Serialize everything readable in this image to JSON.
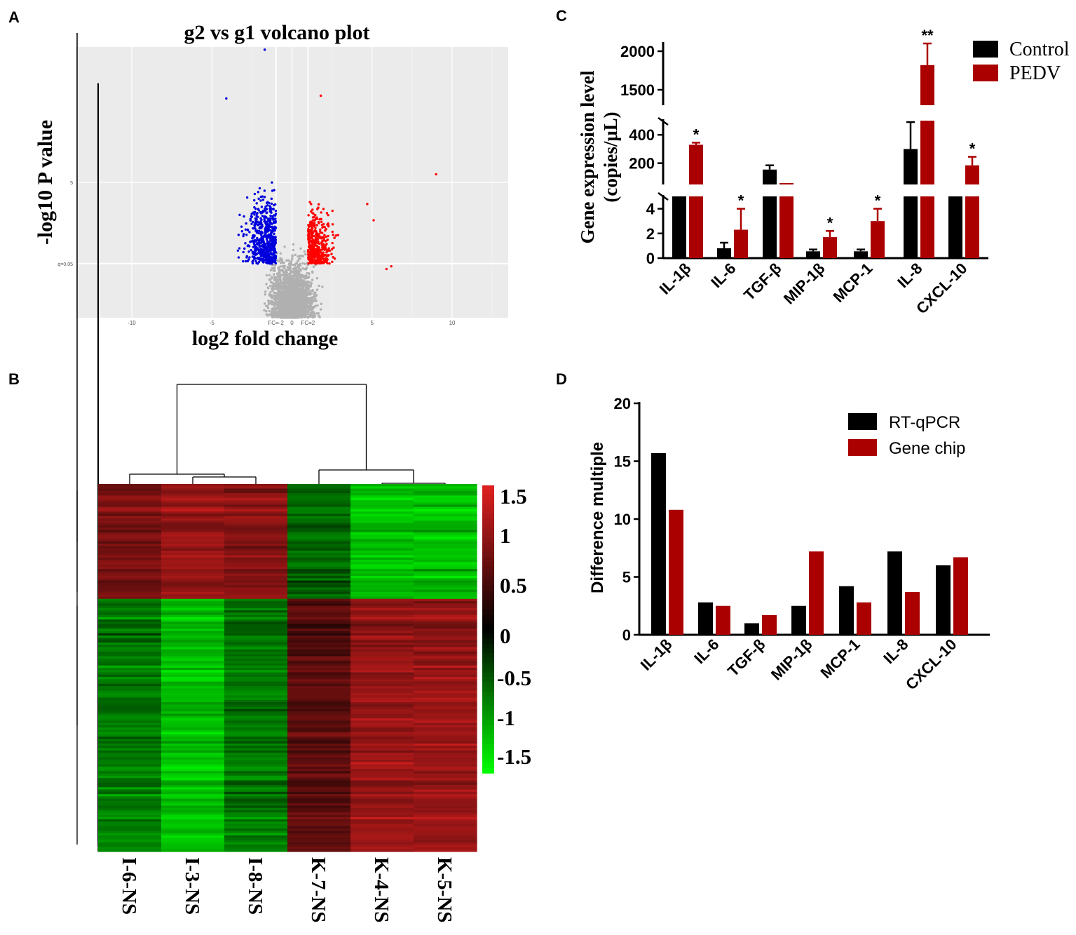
{
  "colors": {
    "control": "#000000",
    "pedv": "#aa0000",
    "rtqpcr": "#000000",
    "genechip": "#aa0000",
    "volcano_bg": "#ebebeb",
    "volcano_up": "#ff0000",
    "volcano_down": "#0000dd",
    "volcano_ns": "#b0b0b0",
    "heat_high": "#e02020",
    "heat_mid": "#000000",
    "heat_low": "#00ff00"
  },
  "chart_data": [
    {
      "panel": "A",
      "type": "scatter",
      "title": "g2 vs g1 volcano plot",
      "xlabel": "log2 fold change",
      "ylabel": "-log10 P value",
      "xlim": [
        -13.5,
        13.5
      ],
      "ylim": [
        0,
        10
      ],
      "x_ticks": [
        "-10",
        "-5",
        "FC=-2",
        "0",
        "FC=2",
        "5",
        "10"
      ],
      "y_ticks": [
        "5",
        "q=0.05"
      ],
      "groups": [
        {
          "name": "up",
          "color": "red"
        },
        {
          "name": "down",
          "color": "blue"
        },
        {
          "name": "not significant",
          "color": "grey"
        }
      ],
      "outliers": [
        {
          "x": -1.7,
          "y": 9.9,
          "group": "down"
        },
        {
          "x": -4.1,
          "y": 8.1,
          "group": "down"
        },
        {
          "x": 1.8,
          "y": 8.2,
          "group": "up"
        },
        {
          "x": 9.0,
          "y": 5.3,
          "group": "up"
        },
        {
          "x": 6.2,
          "y": 1.9,
          "group": "up"
        },
        {
          "x": 5.9,
          "y": 1.8,
          "group": "up"
        },
        {
          "x": 5.1,
          "y": 3.6,
          "group": "up"
        },
        {
          "x": 4.7,
          "y": 4.2,
          "group": "up"
        }
      ]
    },
    {
      "panel": "B",
      "type": "heatmap",
      "columns": [
        "I-6-NS",
        "I-3-NS",
        "I-8-NS",
        "K-7-NS",
        "K-4-NS",
        "K-5-NS"
      ],
      "color_scale": {
        "min": -1.5,
        "max": 1.5
      },
      "colorbar_ticks": [
        "1.5",
        "1",
        "0.5",
        "0",
        "-0.5",
        "-1",
        "-1.5"
      ],
      "clusters": [
        {
          "name": "upper cluster",
          "row_fraction": 0.31,
          "column_means": [
            0.8,
            1.0,
            0.9,
            -0.6,
            -1.1,
            -1.1
          ]
        },
        {
          "name": "lower cluster",
          "row_fraction": 0.69,
          "column_means": [
            -0.7,
            -1.1,
            -0.7,
            0.6,
            1.0,
            1.0
          ]
        }
      ]
    },
    {
      "panel": "C",
      "type": "bar",
      "ylabel": "Gene expression level",
      "ylabel_unit": "(copies/μL)",
      "categories": [
        "IL-1β",
        "IL-6",
        "TGF-β",
        "MIP-1β",
        "MCP-1",
        "IL-8",
        "CXCL-10"
      ],
      "series": [
        {
          "name": "Control",
          "values": [
            5,
            0.8,
            155,
            0.55,
            0.55,
            300,
            5
          ],
          "errors": [
            0,
            0.45,
            30,
            0.15,
            0.15,
            190,
            0
          ]
        },
        {
          "name": "PEDV",
          "values": [
            330,
            2.3,
            60,
            1.7,
            3.0,
            1820,
            185
          ],
          "errors": [
            15,
            1.7,
            0,
            0.5,
            1.0,
            330,
            60
          ]
        }
      ],
      "significance": [
        "*",
        "*",
        "",
        "*",
        "*",
        "**",
        "*"
      ],
      "y_ticks": [
        "0",
        "2",
        "4",
        "200",
        "400",
        "1500",
        "2000"
      ],
      "axis_breaks": [
        [
          5,
          50
        ],
        [
          500,
          1300
        ]
      ]
    },
    {
      "panel": "D",
      "type": "bar",
      "ylabel": "Difference multiple",
      "categories": [
        "IL-1β",
        "IL-6",
        "TGF-β",
        "MIP-1β",
        "MCP-1",
        "IL-8",
        "CXCL-10"
      ],
      "series": [
        {
          "name": "RT-qPCR",
          "values": [
            15.7,
            2.8,
            1.0,
            2.5,
            4.2,
            7.2,
            6.0
          ]
        },
        {
          "name": "Gene chip",
          "values": [
            10.8,
            2.5,
            1.7,
            7.2,
            2.8,
            3.7,
            6.7
          ]
        }
      ],
      "y_ticks": [
        "0",
        "5",
        "10",
        "15",
        "20"
      ],
      "ylim": [
        0,
        20
      ]
    }
  ],
  "panel_labels": {
    "a": "A",
    "b": "B",
    "c": "C",
    "d": "D"
  }
}
